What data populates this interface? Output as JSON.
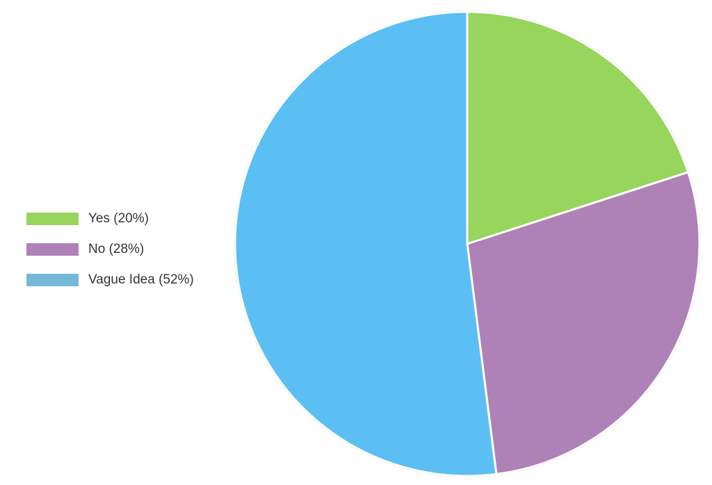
{
  "chart_data": {
    "type": "pie",
    "categories": [
      "Yes",
      "No",
      "Vague Idea"
    ],
    "values": [
      20,
      28,
      52
    ],
    "start_angle_deg": 0,
    "direction": "clockwise",
    "legend_position": "left",
    "colors": [
      "#97d55c",
      "#af82b7",
      "#5bbff3"
    ],
    "legend_swatch_colors": [
      "#97d55c",
      "#af82b7",
      "#74b8d8"
    ],
    "legend": [
      {
        "label": "Yes (20%)"
      },
      {
        "label": "No (28%)"
      },
      {
        "label": "Vague Idea (52%)"
      }
    ]
  }
}
